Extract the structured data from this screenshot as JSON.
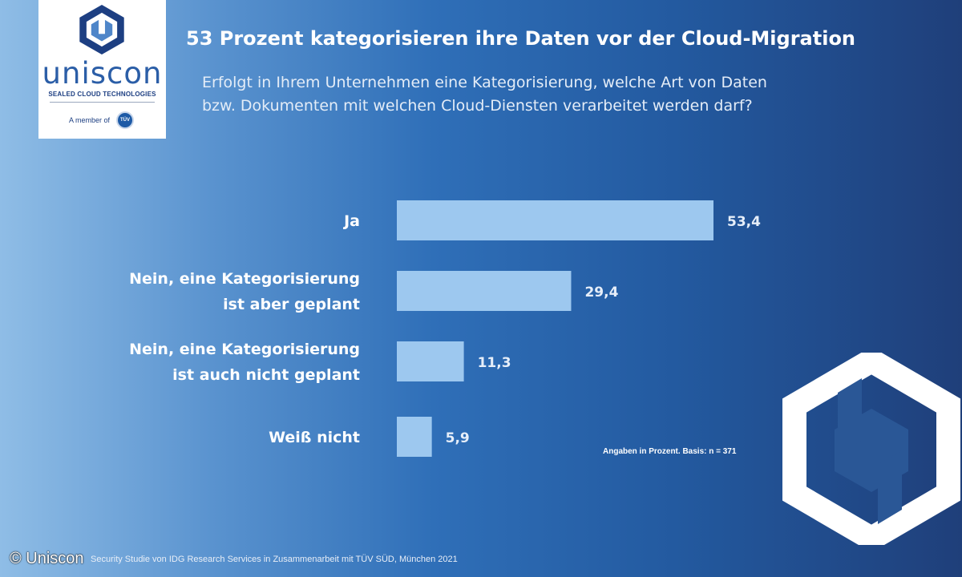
{
  "logo": {
    "word": "uniscon",
    "tagline": "SEALED CLOUD TECHNOLOGIES",
    "member_text": "A member of",
    "member_badge": "TÜV",
    "colors": {
      "dark": "#1d3f82",
      "mid": "#2b5ea7"
    }
  },
  "header": {
    "title": "53 Prozent kategorisieren ihre Daten vor der Cloud-Migration",
    "subtitle_lines": [
      "Erfolgt in Ihrem Unternehmen eine Kategorisierung, welche Art von Daten",
      "bzw. Dokumenten mit welchen Cloud-Diensten verarbeitet werden darf?"
    ]
  },
  "chart_data": {
    "type": "bar",
    "orientation": "horizontal",
    "title": "53 Prozent kategorisieren ihre Daten vor der Cloud-Migration",
    "categories": [
      [
        "Ja"
      ],
      [
        "Nein, eine Kategorisierung",
        "ist aber geplant"
      ],
      [
        "Nein, eine Kategorisierung",
        "ist auch nicht geplant"
      ],
      [
        "Weiß nicht"
      ]
    ],
    "values": [
      53.4,
      29.4,
      11.3,
      5.9
    ],
    "value_labels": [
      "53,4",
      "29,4",
      "11,3",
      "5,9"
    ],
    "xlim": [
      0,
      53.4
    ],
    "grid": false,
    "legend": "none",
    "bar_color": "#9dc8ef",
    "note": "Angaben in Prozent. Basis: n = 371"
  },
  "footer": {
    "copyright": "© Uniscon",
    "source": "Security Studie von IDG Research Services in Zusammenarbeit mit TÜV SÜD, München 2021"
  }
}
